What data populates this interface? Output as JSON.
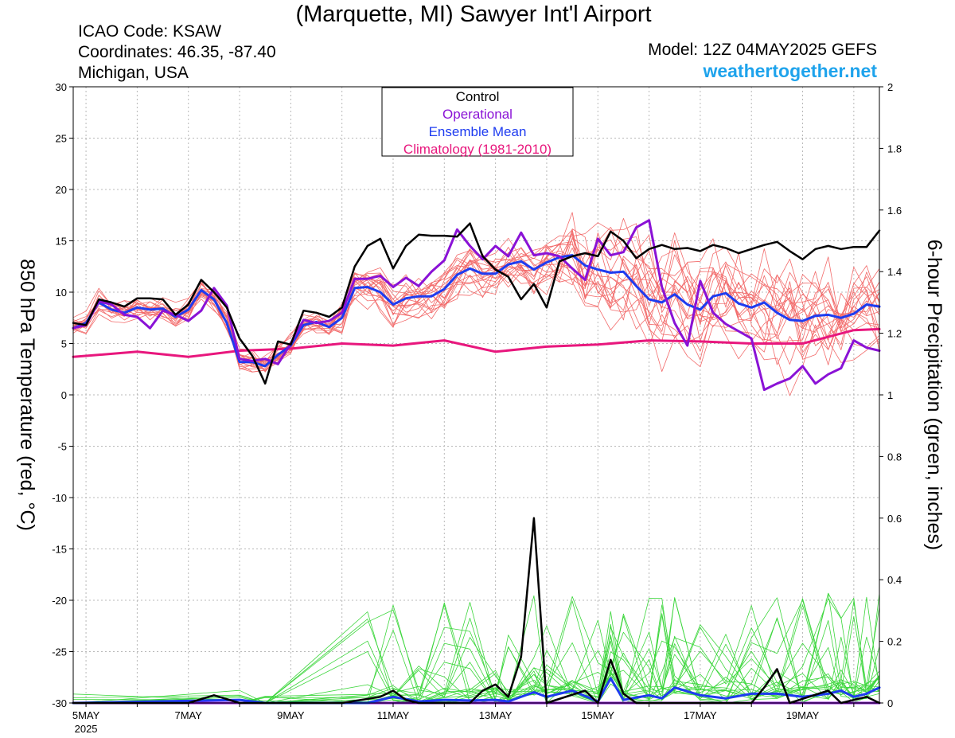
{
  "header": {
    "title": "(Marquette, MI) Sawyer Int'l Airport",
    "icao": "ICAO Code: KSAW",
    "coords": "Coordinates: 46.35, -87.40",
    "region": "Michigan, USA",
    "model": "Model: 12Z 04MAY2025 GEFS",
    "site": "weathertogether.net"
  },
  "colors": {
    "control": "#000000",
    "operational": "#8a12d6",
    "mean": "#1e3cf0",
    "climatology": "#e8177d",
    "members_temp": "#f26a6a",
    "members_precip": "#3bd63b",
    "site": "#1ea3ec"
  },
  "chart_data": {
    "type": "line",
    "title": "(Marquette, MI) Sawyer Int'l Airport",
    "ylabel": "850 hPa Temperature (red, °C)",
    "y2label": "6-hour Precipitation (green, inches)",
    "x_ticks": [
      "5MAY",
      "7MAY",
      "9MAY",
      "11MAY",
      "13MAY",
      "15MAY",
      "17MAY",
      "19MAY"
    ],
    "x_year": "2025",
    "x_range_days": [
      4.75,
      20.5
    ],
    "ylim": [
      -30,
      30
    ],
    "y_ticks": [
      30,
      25,
      20,
      15,
      10,
      5,
      0,
      -5,
      -10,
      -15,
      -20,
      -25,
      -30
    ],
    "y2lim": [
      0,
      2
    ],
    "y2_ticks": [
      "2",
      "1.8",
      "1.6",
      "1.4",
      "1.2",
      "1",
      "0.8",
      "0.6",
      "0.4",
      "0.2",
      "0"
    ],
    "grid": true,
    "legend": {
      "position": "top-center",
      "entries": [
        "Control",
        "Operational",
        "Ensemble Mean",
        "Climatology (1981-2010)"
      ]
    },
    "temperature": {
      "control": [
        [
          4.75,
          7.0
        ],
        [
          5.0,
          6.8
        ],
        [
          5.25,
          9.3
        ],
        [
          5.5,
          9.0
        ],
        [
          5.75,
          8.6
        ],
        [
          6.0,
          9.4
        ],
        [
          6.25,
          9.4
        ],
        [
          6.5,
          9.3
        ],
        [
          6.75,
          7.8
        ],
        [
          7.0,
          8.8
        ],
        [
          7.25,
          11.2
        ],
        [
          7.5,
          10.0
        ],
        [
          7.75,
          8.5
        ],
        [
          8.0,
          5.5
        ],
        [
          8.25,
          3.8
        ],
        [
          8.5,
          1.1
        ],
        [
          8.75,
          5.2
        ],
        [
          9.0,
          4.9
        ],
        [
          9.25,
          8.2
        ],
        [
          9.5,
          8.0
        ],
        [
          9.75,
          7.6
        ],
        [
          10.0,
          8.5
        ],
        [
          10.25,
          12.5
        ],
        [
          10.5,
          14.5
        ],
        [
          10.75,
          15.2
        ],
        [
          11.0,
          12.3
        ],
        [
          11.25,
          14.5
        ],
        [
          11.5,
          15.6
        ],
        [
          11.75,
          15.5
        ],
        [
          12.0,
          15.5
        ],
        [
          12.25,
          15.4
        ],
        [
          12.5,
          16.7
        ],
        [
          12.75,
          13.5
        ],
        [
          13.0,
          12.2
        ],
        [
          13.25,
          11.5
        ],
        [
          13.5,
          9.3
        ],
        [
          13.75,
          10.8
        ],
        [
          14.0,
          8.5
        ],
        [
          14.25,
          13.0
        ],
        [
          14.5,
          13.5
        ],
        [
          14.75,
          13.8
        ],
        [
          15.0,
          13.5
        ],
        [
          15.25,
          15.9
        ],
        [
          15.5,
          15.0
        ],
        [
          15.75,
          13.3
        ],
        [
          16.0,
          14.2
        ],
        [
          16.25,
          14.6
        ],
        [
          16.5,
          14.2
        ],
        [
          16.75,
          14.3
        ],
        [
          17.0,
          14.0
        ],
        [
          17.25,
          14.6
        ],
        [
          17.5,
          14.3
        ],
        [
          17.75,
          13.8
        ],
        [
          18.0,
          14.2
        ],
        [
          18.25,
          14.6
        ],
        [
          18.5,
          14.9
        ],
        [
          18.75,
          14.0
        ],
        [
          19.0,
          13.2
        ],
        [
          19.25,
          14.2
        ],
        [
          19.5,
          14.5
        ],
        [
          19.75,
          14.2
        ],
        [
          20.0,
          14.4
        ],
        [
          20.25,
          14.4
        ],
        [
          20.5,
          16.0
        ]
      ],
      "operational": [
        [
          4.75,
          6.5
        ],
        [
          5.0,
          6.8
        ],
        [
          5.25,
          9.1
        ],
        [
          5.5,
          8.8
        ],
        [
          5.75,
          7.8
        ],
        [
          6.0,
          7.6
        ],
        [
          6.25,
          6.5
        ],
        [
          6.5,
          8.2
        ],
        [
          6.75,
          7.8
        ],
        [
          7.0,
          7.2
        ],
        [
          7.25,
          8.2
        ],
        [
          7.5,
          10.4
        ],
        [
          7.75,
          8.7
        ],
        [
          8.0,
          3.5
        ],
        [
          8.25,
          3.3
        ],
        [
          8.5,
          3.5
        ],
        [
          8.75,
          3.0
        ],
        [
          9.0,
          5.0
        ],
        [
          9.25,
          7.3
        ],
        [
          9.5,
          7.0
        ],
        [
          9.75,
          7.2
        ],
        [
          10.0,
          8.0
        ],
        [
          10.25,
          11.3
        ],
        [
          10.5,
          11.3
        ],
        [
          10.75,
          11.6
        ],
        [
          11.0,
          10.5
        ],
        [
          11.25,
          11.4
        ],
        [
          11.5,
          10.6
        ],
        [
          11.75,
          12.0
        ],
        [
          12.0,
          13.1
        ],
        [
          12.25,
          16.1
        ],
        [
          12.5,
          14.5
        ],
        [
          12.75,
          13.2
        ],
        [
          13.0,
          14.5
        ],
        [
          13.25,
          13.5
        ],
        [
          13.5,
          15.8
        ],
        [
          13.75,
          13.6
        ],
        [
          14.0,
          13.8
        ],
        [
          14.25,
          13.5
        ],
        [
          14.5,
          12.3
        ],
        [
          14.75,
          11.2
        ],
        [
          15.0,
          15.2
        ],
        [
          15.25,
          13.6
        ],
        [
          15.5,
          13.9
        ],
        [
          15.75,
          16.3
        ],
        [
          16.0,
          17.0
        ],
        [
          16.25,
          10.5
        ],
        [
          16.5,
          7.0
        ],
        [
          16.75,
          4.8
        ],
        [
          17.0,
          11.1
        ],
        [
          17.25,
          8.0
        ],
        [
          17.5,
          6.9
        ],
        [
          17.75,
          6.2
        ],
        [
          18.0,
          5.5
        ],
        [
          18.25,
          0.5
        ],
        [
          18.5,
          1.1
        ],
        [
          18.75,
          1.6
        ],
        [
          19.0,
          2.8
        ],
        [
          19.25,
          1.1
        ],
        [
          19.5,
          2.0
        ],
        [
          19.75,
          2.6
        ],
        [
          20.0,
          5.3
        ],
        [
          20.25,
          4.6
        ],
        [
          20.5,
          4.3
        ]
      ],
      "mean": [
        [
          4.75,
          6.5
        ],
        [
          5.0,
          7.0
        ],
        [
          5.25,
          9.0
        ],
        [
          5.5,
          8.3
        ],
        [
          5.75,
          8.0
        ],
        [
          6.0,
          8.5
        ],
        [
          6.25,
          8.3
        ],
        [
          6.5,
          8.4
        ],
        [
          6.75,
          7.6
        ],
        [
          7.0,
          8.3
        ],
        [
          7.25,
          10.2
        ],
        [
          7.5,
          9.3
        ],
        [
          7.75,
          7.0
        ],
        [
          8.0,
          3.2
        ],
        [
          8.25,
          3.2
        ],
        [
          8.5,
          2.8
        ],
        [
          8.75,
          3.9
        ],
        [
          9.0,
          4.8
        ],
        [
          9.25,
          6.8
        ],
        [
          9.5,
          7.1
        ],
        [
          9.75,
          6.6
        ],
        [
          10.0,
          7.5
        ],
        [
          10.25,
          10.4
        ],
        [
          10.5,
          10.5
        ],
        [
          10.75,
          10.0
        ],
        [
          11.0,
          8.8
        ],
        [
          11.25,
          9.4
        ],
        [
          11.5,
          9.6
        ],
        [
          11.75,
          9.6
        ],
        [
          12.0,
          10.3
        ],
        [
          12.25,
          11.7
        ],
        [
          12.5,
          12.3
        ],
        [
          12.75,
          11.8
        ],
        [
          13.0,
          11.8
        ],
        [
          13.25,
          12.7
        ],
        [
          13.5,
          13.0
        ],
        [
          13.75,
          12.2
        ],
        [
          14.0,
          12.9
        ],
        [
          14.25,
          13.4
        ],
        [
          14.5,
          13.6
        ],
        [
          14.75,
          12.6
        ],
        [
          15.0,
          12.2
        ],
        [
          15.25,
          11.9
        ],
        [
          15.5,
          12.0
        ],
        [
          15.75,
          10.6
        ],
        [
          16.0,
          9.3
        ],
        [
          16.25,
          9.0
        ],
        [
          16.5,
          9.8
        ],
        [
          16.75,
          8.8
        ],
        [
          17.0,
          8.3
        ],
        [
          17.25,
          9.6
        ],
        [
          17.5,
          9.9
        ],
        [
          17.75,
          8.9
        ],
        [
          18.0,
          8.5
        ],
        [
          18.25,
          9.0
        ],
        [
          18.5,
          8.0
        ],
        [
          18.75,
          7.3
        ],
        [
          19.0,
          7.2
        ],
        [
          19.25,
          7.7
        ],
        [
          19.5,
          7.8
        ],
        [
          19.75,
          7.5
        ],
        [
          20.0,
          7.9
        ],
        [
          20.25,
          8.8
        ],
        [
          20.5,
          8.6
        ]
      ],
      "climatology": [
        [
          4.75,
          3.7
        ],
        [
          6.0,
          4.2
        ],
        [
          7.0,
          3.7
        ],
        [
          8.0,
          4.3
        ],
        [
          9.0,
          4.5
        ],
        [
          10.0,
          5.0
        ],
        [
          11.0,
          4.8
        ],
        [
          12.0,
          5.3
        ],
        [
          13.0,
          4.2
        ],
        [
          14.0,
          4.7
        ],
        [
          15.0,
          4.9
        ],
        [
          16.0,
          5.3
        ],
        [
          17.0,
          5.2
        ],
        [
          18.0,
          5.0
        ],
        [
          19.0,
          5.0
        ],
        [
          20.0,
          6.3
        ],
        [
          20.5,
          6.4
        ]
      ]
    },
    "precip_inches": {
      "control": [
        [
          4.75,
          0
        ],
        [
          7.0,
          0
        ],
        [
          7.5,
          0.025
        ],
        [
          8.0,
          0
        ],
        [
          10.0,
          0
        ],
        [
          10.75,
          0.02
        ],
        [
          11.0,
          0.04
        ],
        [
          11.25,
          0.01
        ],
        [
          11.5,
          0
        ],
        [
          12.5,
          0
        ],
        [
          12.75,
          0.04
        ],
        [
          13.0,
          0.06
        ],
        [
          13.25,
          0.02
        ],
        [
          13.5,
          0.15
        ],
        [
          13.75,
          0.6
        ],
        [
          14.0,
          0
        ],
        [
          14.75,
          0.04
        ],
        [
          15.0,
          0
        ],
        [
          15.25,
          0.14
        ],
        [
          15.5,
          0.03
        ],
        [
          15.75,
          0
        ],
        [
          18.0,
          0
        ],
        [
          18.25,
          0.05
        ],
        [
          18.5,
          0.11
        ],
        [
          18.75,
          0
        ],
        [
          19.5,
          0.04
        ],
        [
          19.75,
          0
        ],
        [
          20.25,
          0.02
        ],
        [
          20.5,
          0
        ]
      ],
      "operational": [
        [
          4.75,
          0
        ],
        [
          20.5,
          0
        ]
      ],
      "mean": [
        [
          4.75,
          0
        ],
        [
          8.0,
          0.01
        ],
        [
          8.5,
          0
        ],
        [
          10.5,
          0
        ],
        [
          11.0,
          0.02
        ],
        [
          11.5,
          0.005
        ],
        [
          12.0,
          0.01
        ],
        [
          12.5,
          0.008
        ],
        [
          13.0,
          0.01
        ],
        [
          13.25,
          0.005
        ],
        [
          13.75,
          0.035
        ],
        [
          14.0,
          0.02
        ],
        [
          14.5,
          0.04
        ],
        [
          15.0,
          0.005
        ],
        [
          15.25,
          0.08
        ],
        [
          15.5,
          0.01
        ],
        [
          16.0,
          0.025
        ],
        [
          16.25,
          0.015
        ],
        [
          16.5,
          0.05
        ],
        [
          17.0,
          0.025
        ],
        [
          17.5,
          0.015
        ],
        [
          18.0,
          0.03
        ],
        [
          18.5,
          0.03
        ],
        [
          19.0,
          0.02
        ],
        [
          19.5,
          0.03
        ],
        [
          19.75,
          0.04
        ],
        [
          20.0,
          0.02
        ],
        [
          20.25,
          0.03
        ],
        [
          20.5,
          0.05
        ]
      ]
    }
  }
}
